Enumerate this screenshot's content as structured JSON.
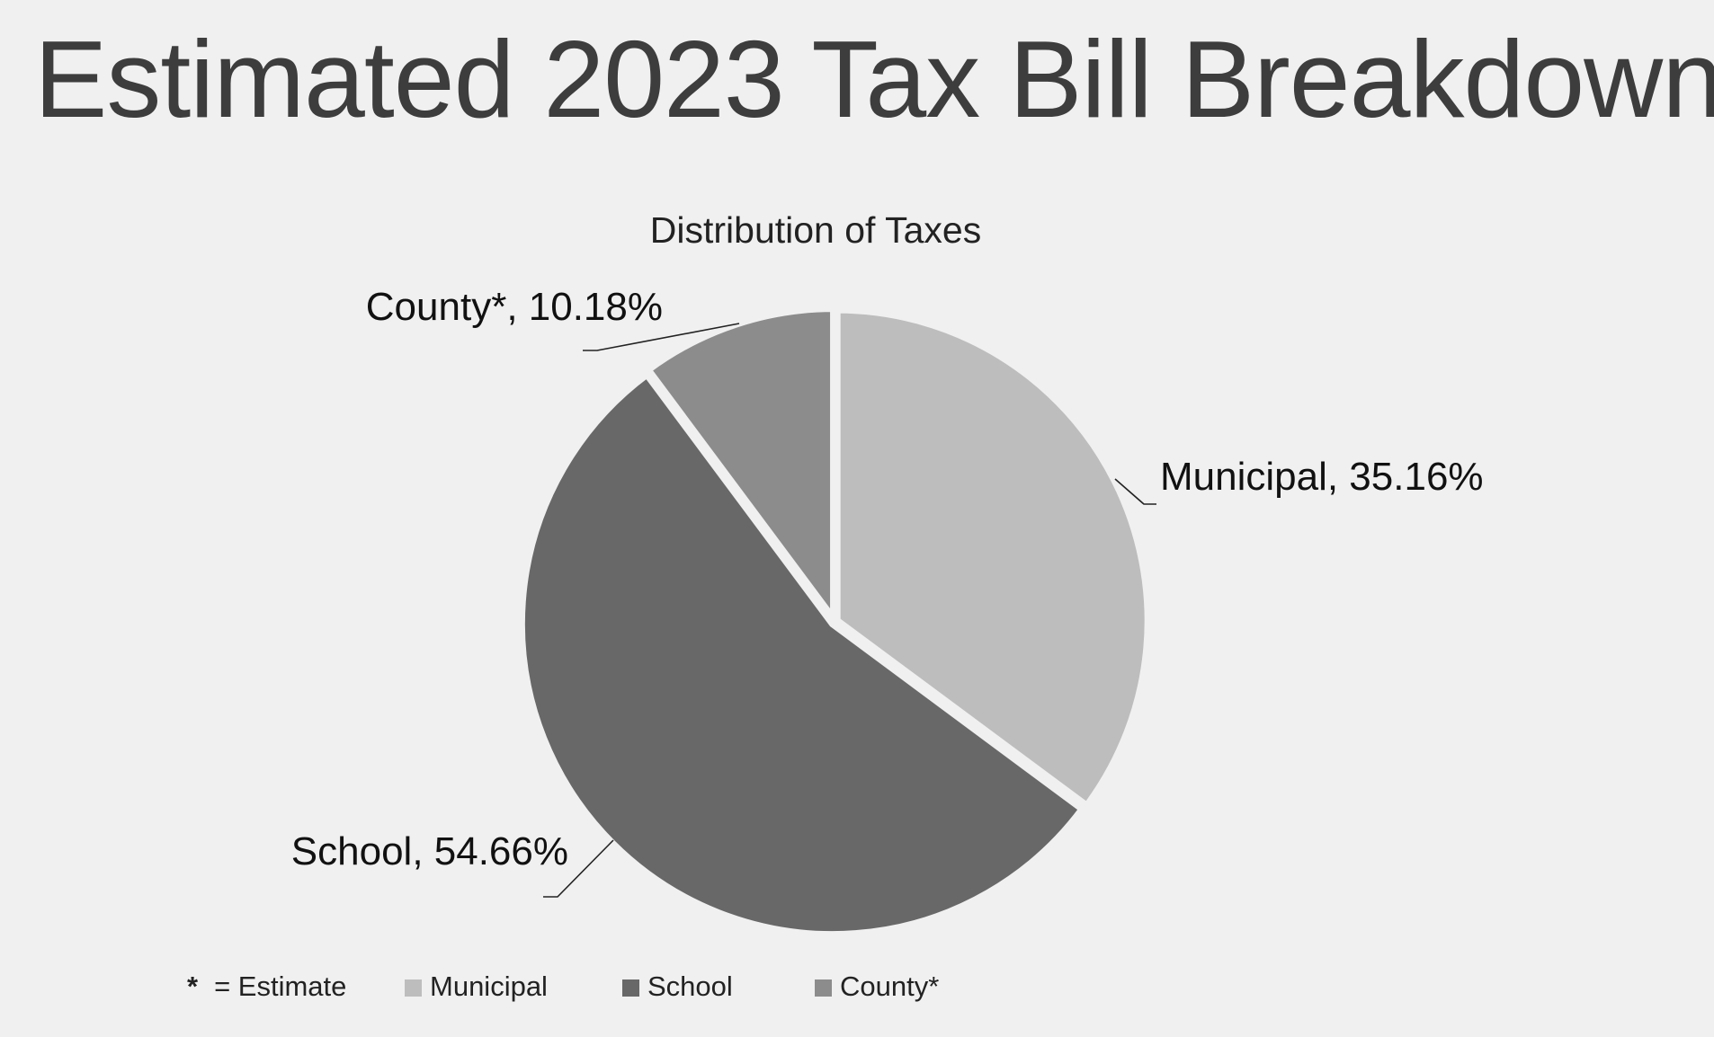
{
  "slide": {
    "title": "Estimated 2023 Tax Bill Breakdown"
  },
  "legend_note": {
    "symbol": "*",
    "text": "= Estimate"
  },
  "chart_data": {
    "type": "pie",
    "title": "Distribution of Taxes",
    "series": [
      {
        "name": "Taxes",
        "values": [
          35.16,
          54.66,
          10.18
        ]
      }
    ],
    "categories": [
      "Municipal",
      "School",
      "County*"
    ],
    "data_labels": [
      "Municipal, 35.16%",
      "School, 54.66%",
      "County*, 10.18%"
    ],
    "colors": [
      "#bdbdbd",
      "#686868",
      "#8c8c8c"
    ],
    "start_angle_deg": 0,
    "direction": "clockwise",
    "legend": {
      "position": "bottom",
      "entries": [
        "Municipal",
        "School",
        "County*"
      ]
    }
  }
}
